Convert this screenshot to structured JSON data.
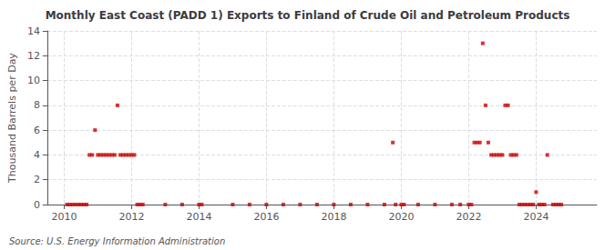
{
  "chart_data": {
    "type": "scatter",
    "title": "Monthly East Coast (PADD 1) Exports to Finland of Crude Oil and Petroleum Products",
    "ylabel": "Thousand Barrels per Day",
    "annotations": [
      "Source: U.S. Energy Information Administration"
    ],
    "color": "#cc0000",
    "marker": "square",
    "grid": true,
    "xlim": [
      2009.5,
      2025.8
    ],
    "xticks": [
      2010,
      2012,
      2014,
      2016,
      2018,
      2020,
      2022,
      2024
    ],
    "ylim": [
      0,
      14
    ],
    "yticks": [
      0,
      2,
      4,
      6,
      8,
      10,
      12,
      14
    ],
    "x": [
      2010.083,
      2010.167,
      2010.25,
      2010.333,
      2010.417,
      2010.5,
      2010.583,
      2010.667,
      2010.75,
      2010.833,
      2010.917,
      2011.0,
      2011.083,
      2011.167,
      2011.25,
      2011.333,
      2011.417,
      2011.5,
      2011.583,
      2011.667,
      2011.75,
      2011.833,
      2011.917,
      2012.0,
      2012.083,
      2012.167,
      2012.25,
      2012.333,
      2013.0,
      2013.5,
      2014.0,
      2014.083,
      2015.0,
      2015.5,
      2016.0,
      2016.5,
      2017.0,
      2017.5,
      2018.0,
      2018.5,
      2019.0,
      2019.5,
      2019.75,
      2019.833,
      2020.0,
      2020.083,
      2020.5,
      2021.0,
      2021.5,
      2021.75,
      2022.0,
      2022.083,
      2022.167,
      2022.25,
      2022.333,
      2022.417,
      2022.5,
      2022.583,
      2022.667,
      2022.75,
      2022.833,
      2022.917,
      2023.0,
      2023.083,
      2023.167,
      2023.25,
      2023.333,
      2023.417,
      2023.5,
      2023.583,
      2023.667,
      2023.75,
      2023.833,
      2023.917,
      2024.0,
      2024.083,
      2024.167,
      2024.25,
      2024.333,
      2024.5,
      2024.583,
      2024.667,
      2024.75
    ],
    "values": [
      0,
      0,
      0,
      0,
      0,
      0,
      0,
      0,
      4,
      4,
      6,
      4,
      4,
      4,
      4,
      4,
      4,
      4,
      8,
      4,
      4,
      4,
      4,
      4,
      4,
      0,
      0,
      0,
      0,
      0,
      0,
      0,
      0,
      0,
      0,
      0,
      0,
      0,
      0,
      0,
      0,
      0,
      5,
      0,
      0,
      0,
      0,
      0,
      0,
      0,
      0,
      0,
      5,
      5,
      5,
      13,
      8,
      5,
      4,
      4,
      4,
      4,
      4,
      8,
      8,
      4,
      4,
      4,
      0,
      0,
      0,
      0,
      0,
      0,
      1,
      0,
      0,
      0,
      4,
      0,
      0,
      0,
      0
    ]
  }
}
